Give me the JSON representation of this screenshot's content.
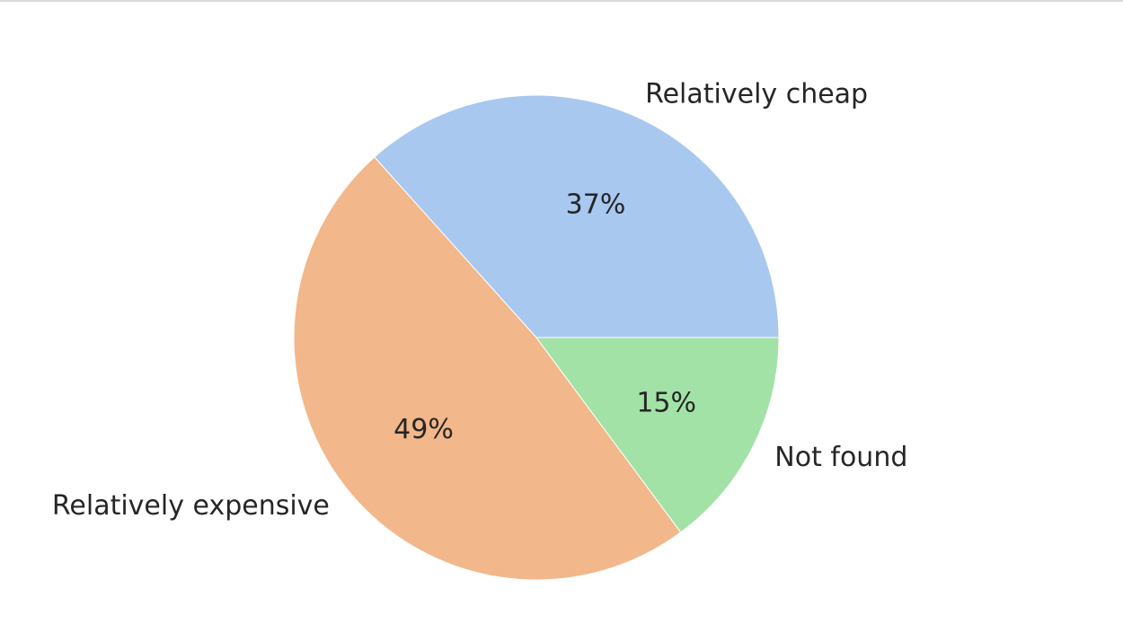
{
  "chart_data": {
    "type": "pie",
    "title": "",
    "slices": [
      {
        "label": "Relatively cheap",
        "value": 37,
        "pct_label": "37%",
        "color": "#a9c8ef"
      },
      {
        "label": "Relatively expensive",
        "value": 49,
        "pct_label": "49%",
        "color": "#f2b78a"
      },
      {
        "label": "Not found",
        "value": 15,
        "pct_label": "15%",
        "color": "#a2e2a6"
      }
    ],
    "start_angle_deg": 0,
    "direction": "counterclockwise",
    "legend": "none"
  }
}
